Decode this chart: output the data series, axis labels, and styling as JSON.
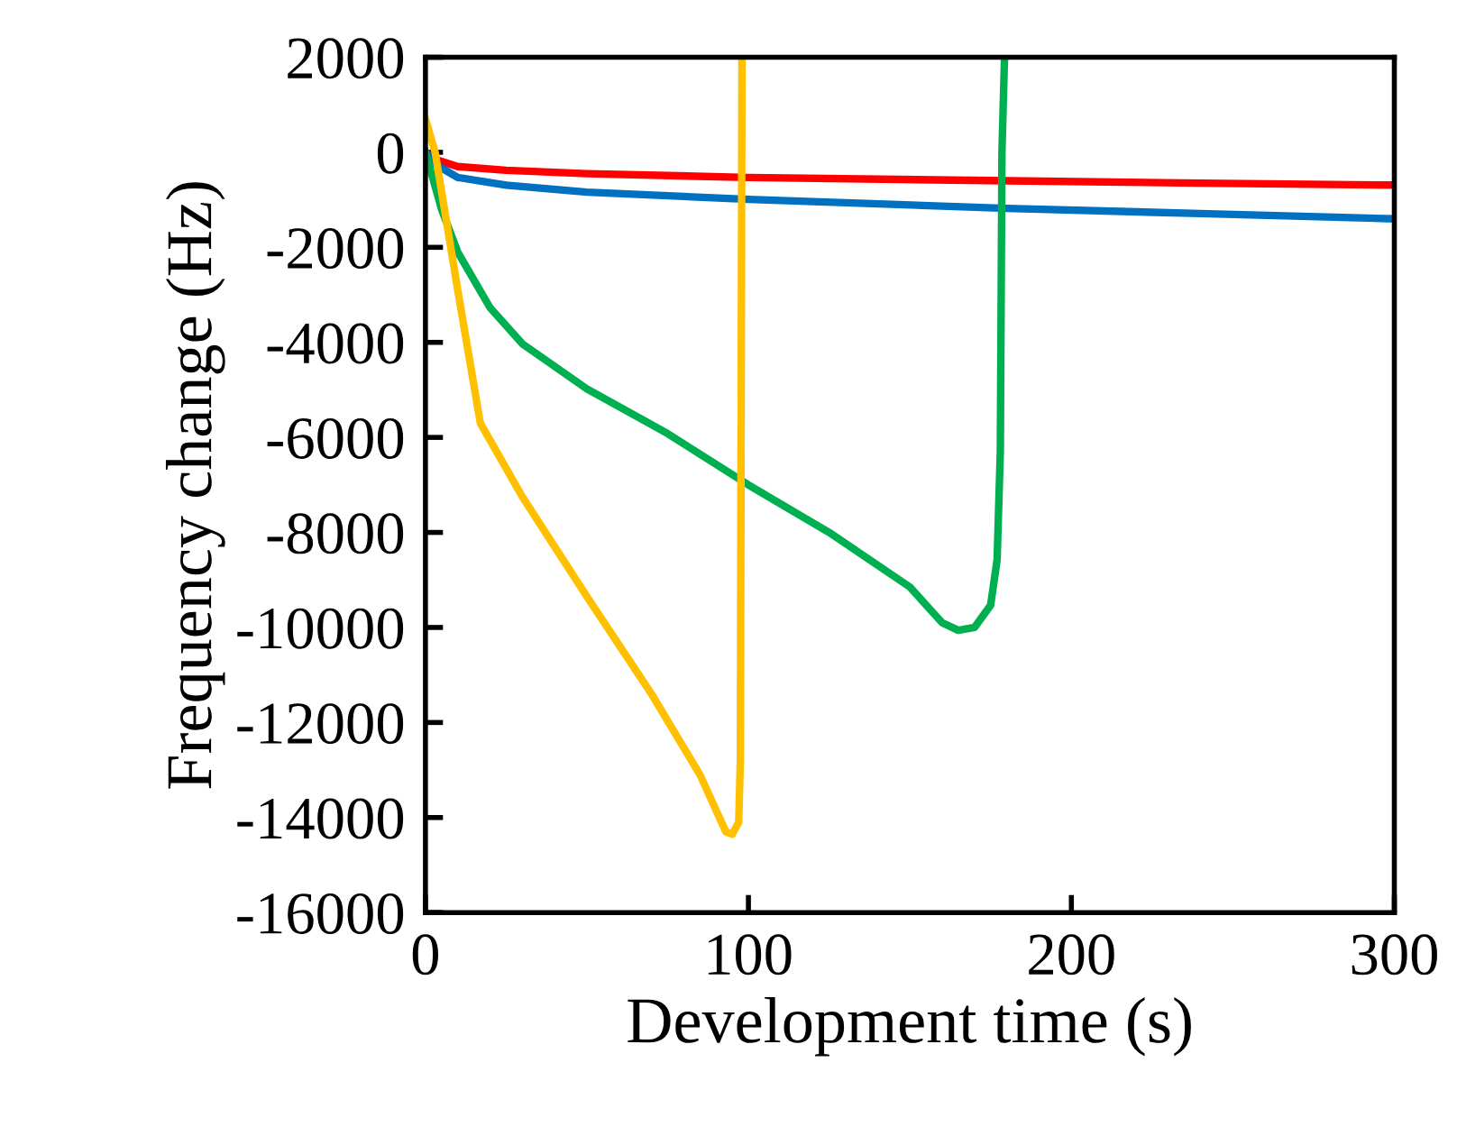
{
  "chart_data": {
    "type": "line",
    "xlabel": "Development time (s)",
    "ylabel": "Frequency change (Hz)",
    "xlim": [
      0,
      300
    ],
    "ylim": [
      -16000,
      2000
    ],
    "xticks": [
      0,
      100,
      200,
      300
    ],
    "yticks": [
      -16000,
      -14000,
      -12000,
      -10000,
      -8000,
      -6000,
      -4000,
      -2000,
      0,
      2000
    ],
    "grid": false,
    "legend": false,
    "line_style": "solid",
    "marker": "none",
    "series": [
      {
        "color": "#ff0000",
        "x": [
          0,
          3,
          10,
          25,
          50,
          100,
          180,
          240,
          300
        ],
        "values": [
          0,
          -150,
          -300,
          -380,
          -450,
          -530,
          -600,
          -650,
          -690
        ]
      },
      {
        "color": "#0070c0",
        "x": [
          0,
          3,
          10,
          25,
          50,
          100,
          180,
          240,
          300
        ],
        "values": [
          0,
          -250,
          -530,
          -690,
          -840,
          -990,
          -1180,
          -1290,
          -1400
        ]
      },
      {
        "color": "#00b050",
        "x": [
          0,
          5,
          10,
          20,
          30,
          50,
          75,
          100,
          125,
          150,
          160,
          165,
          170,
          175,
          177,
          178,
          178.5,
          179.3
        ],
        "values": [
          0,
          -1200,
          -2100,
          -3270,
          -4030,
          -4980,
          -5920,
          -7000,
          -8000,
          -9150,
          -9900,
          -10060,
          -10000,
          -9530,
          -8580,
          -6300,
          0,
          2000
        ]
      },
      {
        "color": "#ffc000",
        "x": [
          0,
          3,
          10,
          17,
          30,
          50,
          70,
          85,
          93,
          95,
          97,
          97.5,
          97.8,
          98
        ],
        "values": [
          700,
          0,
          -2900,
          -5700,
          -7250,
          -9350,
          -11400,
          -13100,
          -14300,
          -14350,
          -14100,
          -12800,
          -4000,
          2000
        ]
      }
    ]
  }
}
